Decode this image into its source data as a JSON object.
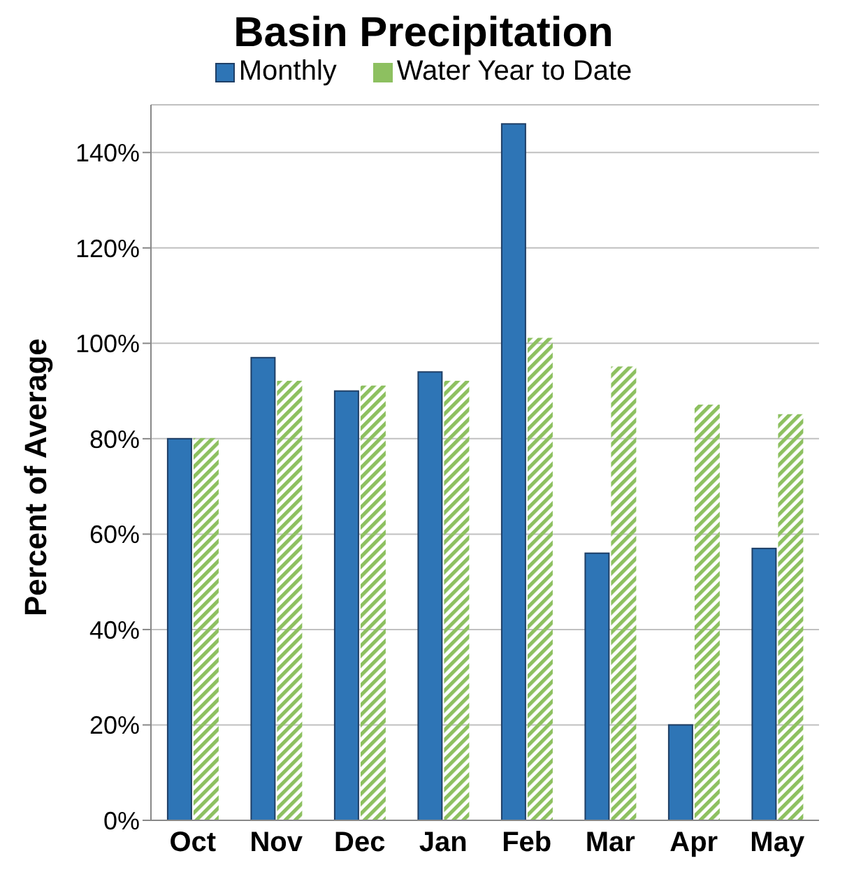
{
  "chart_data": {
    "type": "bar",
    "title": "Basin Precipitation",
    "ylabel": "Percent of Average",
    "categories": [
      "Oct",
      "Nov",
      "Dec",
      "Jan",
      "Feb",
      "Mar",
      "Apr",
      "May"
    ],
    "series": [
      {
        "name": "Monthly",
        "color": "#2e75b6",
        "values": [
          80,
          97,
          90,
          94,
          146,
          56,
          20,
          57
        ]
      },
      {
        "name": "Water Year to Date",
        "color": "#8dc060",
        "values": [
          80,
          92,
          91,
          92,
          101,
          95,
          87,
          85
        ]
      }
    ],
    "ylim": [
      0,
      150
    ],
    "yticks": [
      {
        "value": 0,
        "label": "0%"
      },
      {
        "value": 20,
        "label": "20%"
      },
      {
        "value": 40,
        "label": "40%"
      },
      {
        "value": 60,
        "label": "60%"
      },
      {
        "value": 80,
        "label": "80%"
      },
      {
        "value": 100,
        "label": "100%"
      },
      {
        "value": 120,
        "label": "120%"
      },
      {
        "value": 140,
        "label": "140%"
      }
    ],
    "grid": "y",
    "legend": "top"
  }
}
